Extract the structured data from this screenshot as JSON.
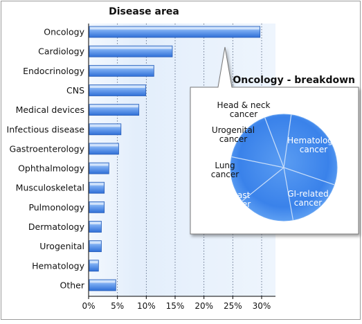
{
  "chart_data": [
    {
      "type": "bar",
      "orientation": "horizontal",
      "title": "Disease area",
      "categories": [
        "Oncology",
        "Cardiology",
        "Endocrinology",
        "CNS",
        "Medical devices",
        "Infectious disease",
        "Gastroenterology",
        "Ophthalmology",
        "Musculoskeletal",
        "Pulmonology",
        "Dermatology",
        "Urogenital",
        "Hematology",
        "Other"
      ],
      "values": [
        29.6,
        14.4,
        11.2,
        9.8,
        8.6,
        5.5,
        5.1,
        3.4,
        2.6,
        2.6,
        2.1,
        2.1,
        1.6,
        4.6
      ],
      "xlim": [
        0,
        30
      ],
      "xticks": [
        "0%",
        "5%",
        "10%",
        "15%",
        "20%",
        "25%",
        "30%"
      ],
      "tick_values": [
        0,
        5,
        10,
        15,
        20,
        25,
        30
      ],
      "grid": true,
      "bar_color": "#4a86e0",
      "background": "#eaf2fc"
    },
    {
      "type": "pie",
      "title": "Oncology - breakdown",
      "labels": [
        "Hematologic cancer",
        "GI-related cancer",
        "Breast cancer",
        "Lung cancer",
        "Urogenital cancer",
        "Head & neck cancer"
      ],
      "values": [
        28,
        17,
        17,
        14,
        16,
        8
      ],
      "slice_color": "#3f86e8"
    }
  ]
}
